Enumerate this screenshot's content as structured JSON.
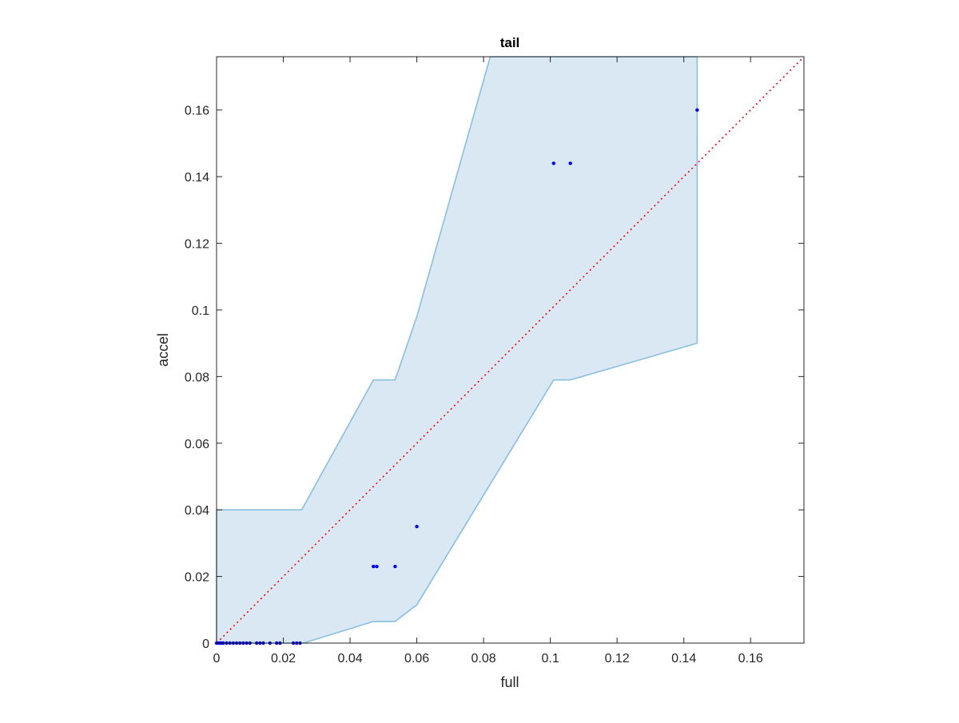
{
  "chart_data": {
    "type": "scatter",
    "title": "tail",
    "xlabel": "full",
    "ylabel": "accel",
    "xlim": [
      0,
      0.176
    ],
    "ylim": [
      0,
      0.176
    ],
    "x_ticks": [
      0,
      0.02,
      0.04,
      0.06,
      0.08,
      0.1,
      0.12,
      0.14,
      0.16
    ],
    "x_tick_labels": [
      "0",
      "0.02",
      "0.04",
      "0.06",
      "0.08",
      "0.1",
      "0.12",
      "0.14",
      "0.16"
    ],
    "y_ticks": [
      0,
      0.02,
      0.04,
      0.06,
      0.08,
      0.1,
      0.12,
      0.14,
      0.16
    ],
    "y_tick_labels": [
      "0",
      "0.02",
      "0.04",
      "0.06",
      "0.08",
      "0.1",
      "0.12",
      "0.14",
      "0.16"
    ],
    "grid": false,
    "colors": {
      "band_fill": "#dae8f4",
      "band_edge": "#88bfe0",
      "points": "#0000ff",
      "reference_line": "#ff0000",
      "axes": "#262626"
    },
    "band": {
      "upper": [
        [
          0,
          0.04
        ],
        [
          0.0255,
          0.04
        ],
        [
          0.047,
          0.079
        ],
        [
          0.0535,
          0.079
        ],
        [
          0.06,
          0.098
        ],
        [
          0.082,
          0.176
        ],
        [
          0.144,
          0.176
        ]
      ],
      "lower": [
        [
          0,
          0
        ],
        [
          0.026,
          0
        ],
        [
          0.047,
          0.0065
        ],
        [
          0.0535,
          0.0065
        ],
        [
          0.06,
          0.0115
        ],
        [
          0.101,
          0.079
        ],
        [
          0.106,
          0.079
        ],
        [
          0.144,
          0.09
        ]
      ]
    },
    "reference_line": [
      [
        0,
        0
      ],
      [
        0.176,
        0.176
      ]
    ],
    "points": [
      [
        0,
        0
      ],
      [
        0.0005,
        0
      ],
      [
        0.001,
        0
      ],
      [
        0.0015,
        0
      ],
      [
        0.002,
        0
      ],
      [
        0.003,
        0
      ],
      [
        0.004,
        0
      ],
      [
        0.005,
        0
      ],
      [
        0.006,
        0
      ],
      [
        0.007,
        0
      ],
      [
        0.008,
        0
      ],
      [
        0.009,
        0
      ],
      [
        0.01,
        0
      ],
      [
        0.012,
        0
      ],
      [
        0.013,
        0
      ],
      [
        0.014,
        0
      ],
      [
        0.016,
        0
      ],
      [
        0.018,
        0
      ],
      [
        0.019,
        0
      ],
      [
        0.023,
        0
      ],
      [
        0.024,
        0
      ],
      [
        0.025,
        0
      ],
      [
        0.047,
        0.023
      ],
      [
        0.048,
        0.023
      ],
      [
        0.0535,
        0.023
      ],
      [
        0.06,
        0.035
      ],
      [
        0.101,
        0.144
      ],
      [
        0.106,
        0.144
      ],
      [
        0.144,
        0.16
      ]
    ]
  }
}
